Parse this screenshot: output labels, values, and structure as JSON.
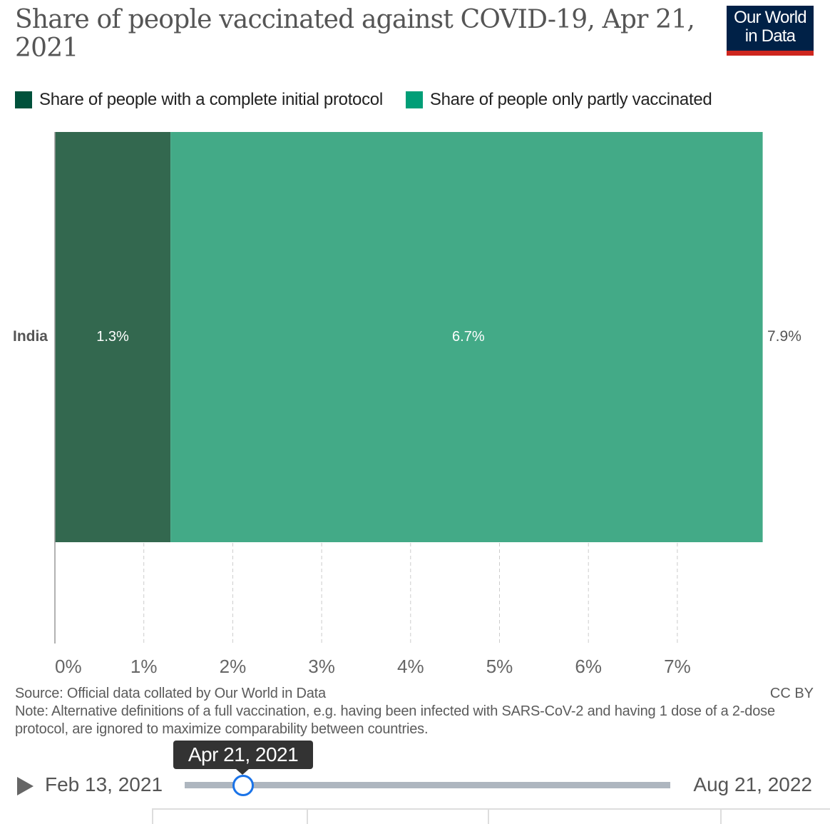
{
  "header": {
    "title": "Share of people vaccinated against COVID-19, Apr 21, 2021",
    "logo": "Our World in Data",
    "logo_line1": "Our World",
    "logo_line2": "in Data"
  },
  "chart_data": {
    "type": "bar",
    "orientation": "horizontal",
    "stacked": true,
    "categories": [
      "India"
    ],
    "series": [
      {
        "name": "Share of people with a complete initial protocol",
        "values": [
          1.3
        ],
        "labels": [
          "1.3%"
        ],
        "color": "#00513b"
      },
      {
        "name": "Share of people only partly vaccinated",
        "values": [
          6.7
        ],
        "labels": [
          "6.7%"
        ],
        "color": "#009e77"
      }
    ],
    "totals": [
      "7.9%"
    ],
    "xlim": [
      0,
      8
    ],
    "xticks": [
      "0%",
      "1%",
      "2%",
      "3%",
      "4%",
      "5%",
      "6%",
      "7%"
    ],
    "grid": true,
    "legend": "top-left"
  },
  "footer": {
    "source": "Source: Official data collated by Our World in Data",
    "license": "CC BY",
    "note": "Note: Alternative definitions of a full vaccination, e.g. having been infected with SARS-CoV-2 and having 1 dose of a 2-dose protocol, are ignored to maximize comparability between countries."
  },
  "timeline": {
    "start": "Feb 13, 2021",
    "end": "Aug 21, 2022",
    "current": "Apr 21, 2021",
    "position": 0.12
  }
}
